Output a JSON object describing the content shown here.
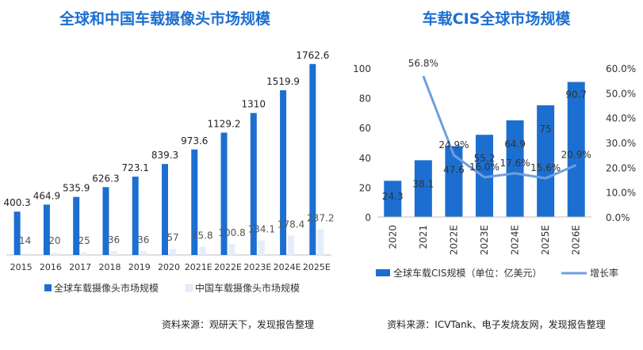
{
  "source_left": "资料来源：观研天下，发现报告整理",
  "source_right": "资料来源：ICVTank、电子发烧友网，发现报告整理",
  "chart_data": [
    {
      "type": "bar",
      "title": "全球和中国车载摄像头市场规模",
      "categories": [
        "2015",
        "2016",
        "2017",
        "2018",
        "2019",
        "2020",
        "2021E",
        "2022E",
        "2023E",
        "2024E",
        "2025E"
      ],
      "series": [
        {
          "name": "全球车载摄像头市场规模",
          "values": [
            400.3,
            464.9,
            535.9,
            626.3,
            723.1,
            839.3,
            973.6,
            1129.2,
            1310,
            1519.9,
            1762.6
          ],
          "labels": [
            "400.3",
            "464.9",
            "535.9",
            "626.3",
            "723.1",
            "839.3",
            "973.6",
            "1129.2",
            "1310",
            "1519.9",
            "1762.6"
          ],
          "color": "#1c6fd0"
        },
        {
          "name": "中国车载摄像头市场规模",
          "values": [
            14,
            20,
            25,
            36,
            36,
            57,
            75.8,
            100.8,
            134.1,
            178.4,
            237.2
          ],
          "labels": [
            "14",
            "20",
            "25",
            "36",
            "36",
            "57",
            "75.8",
            "100.8",
            "134.1",
            "178.4",
            "237.2"
          ],
          "color": "#e4eefb"
        }
      ],
      "ylim": [
        0,
        1900
      ],
      "legend_position": "bottom",
      "grid": false
    },
    {
      "type": "bar+line",
      "title": "车载CIS全球市场规模",
      "categories": [
        "2020",
        "2021",
        "2022E",
        "2023E",
        "2024E",
        "2025E",
        "2026E"
      ],
      "series": [
        {
          "name": "全球车载CIS规模（单位：亿美元）",
          "type": "bar",
          "axis": "left",
          "values": [
            24.3,
            38.1,
            47.6,
            55.2,
            64.9,
            75,
            90.7
          ],
          "labels": [
            "24.3",
            "38.1",
            "47.6",
            "55.2",
            "64.9",
            "75",
            "90.7"
          ],
          "color": "#1c6fd0"
        },
        {
          "name": "增长率",
          "type": "line",
          "axis": "right",
          "values": [
            null,
            56.8,
            24.9,
            16.0,
            17.6,
            15.6,
            20.9
          ],
          "labels": [
            "",
            "56.8%",
            "24.9%",
            "16.0%",
            "17.6%",
            "15.6%",
            "20.9%"
          ],
          "color": "#6f9fde"
        }
      ],
      "y_left": {
        "ticks": [
          "0",
          "20",
          "40",
          "60",
          "80",
          "100"
        ],
        "range": [
          0,
          100
        ]
      },
      "y_right": {
        "ticks": [
          "0.0%",
          "10.0%",
          "20.0%",
          "30.0%",
          "40.0%",
          "50.0%",
          "60.0%"
        ],
        "range": [
          0,
          60
        ]
      },
      "legend_position": "bottom",
      "grid": false
    }
  ]
}
